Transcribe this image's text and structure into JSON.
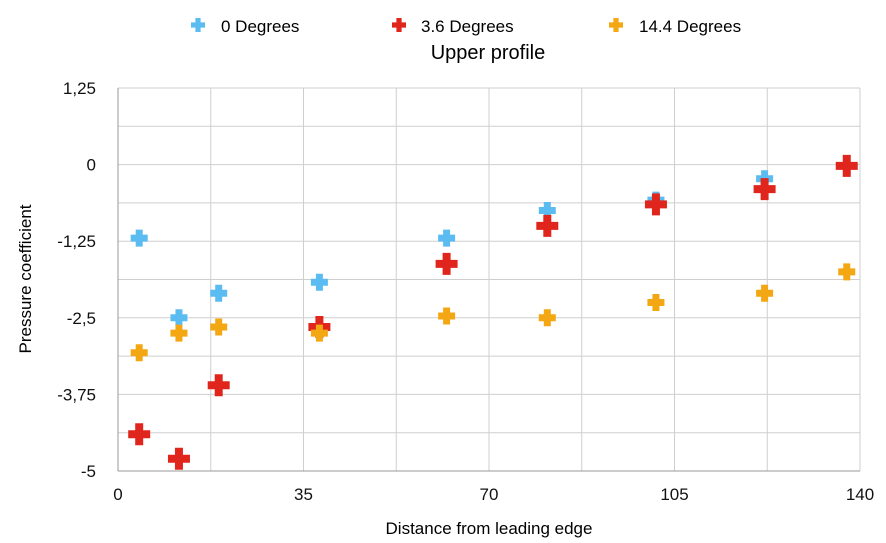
{
  "chart_data": {
    "type": "scatter",
    "title": "Upper profile",
    "xlabel": "Distance from leading edge",
    "ylabel": "Pressure coefficient",
    "xlim": [
      0,
      140
    ],
    "ylim": [
      -5,
      1.25
    ],
    "x_ticks": [
      "0",
      "35",
      "70",
      "105",
      "140"
    ],
    "y_ticks": [
      "1,25",
      "0",
      "-1,25",
      "-2,5",
      "-3,75",
      "-5"
    ],
    "grid": true,
    "legend_position": "top",
    "marker": "plus",
    "series": [
      {
        "name": "0 Degrees",
        "color": "#5bbcf2",
        "points": [
          {
            "x": 4,
            "y": -1.2
          },
          {
            "x": 11.5,
            "y": -2.5
          },
          {
            "x": 19,
            "y": -2.1
          },
          {
            "x": 38,
            "y": -1.92
          },
          {
            "x": 62,
            "y": -1.2
          },
          {
            "x": 81,
            "y": -0.75
          },
          {
            "x": 101.5,
            "y": -0.58
          },
          {
            "x": 122,
            "y": -0.23
          },
          {
            "x": 137.5,
            "y": -0.02
          }
        ]
      },
      {
        "name": "3.6 Degrees",
        "color": "#e0261c",
        "points": [
          {
            "x": 4,
            "y": -4.4
          },
          {
            "x": 11.5,
            "y": -4.8
          },
          {
            "x": 19,
            "y": -3.6
          },
          {
            "x": 38,
            "y": -2.65
          },
          {
            "x": 62,
            "y": -1.62
          },
          {
            "x": 81,
            "y": -1.0
          },
          {
            "x": 101.5,
            "y": -0.65
          },
          {
            "x": 122,
            "y": -0.4
          },
          {
            "x": 137.5,
            "y": -0.02
          }
        ]
      },
      {
        "name": "14.4 Degrees",
        "color": "#f3a712",
        "points": [
          {
            "x": 4,
            "y": -3.07
          },
          {
            "x": 11.5,
            "y": -2.75
          },
          {
            "x": 19,
            "y": -2.65
          },
          {
            "x": 38,
            "y": -2.75
          },
          {
            "x": 62,
            "y": -2.47
          },
          {
            "x": 81,
            "y": -2.5
          },
          {
            "x": 101.5,
            "y": -2.25
          },
          {
            "x": 122,
            "y": -2.1
          },
          {
            "x": 137.5,
            "y": -1.75
          }
        ]
      }
    ]
  }
}
